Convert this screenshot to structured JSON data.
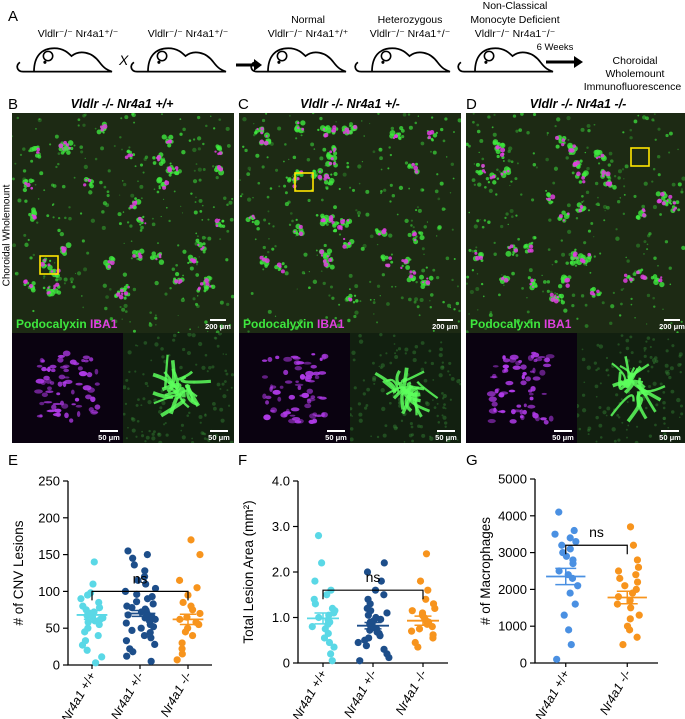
{
  "panel_letters": [
    "A",
    "B",
    "C",
    "D",
    "E",
    "F",
    "G"
  ],
  "schematic": {
    "mouse1": "Vldlr⁻/⁻ Nr4a1⁺/⁻",
    "cross": "X",
    "mouse2": "Vldlr⁻/⁻ Nr4a1⁺/⁻",
    "group1_title": "Normal",
    "group1_geno": "Vldlr⁻/⁻ Nr4a1⁺/⁺",
    "group2_title": "Heterozygous",
    "group2_geno": "Vldlr⁻/⁻ Nr4a1⁺/⁻",
    "group3_title_1": "Non-Classical",
    "group3_title_2": "Monocyte Deficient",
    "group3_geno": "Vldlr⁻/⁻ Nr4a1⁻/⁻",
    "timepoint": "6 Weeks",
    "endpoint_1": "Choroidal",
    "endpoint_2": "Wholemount",
    "endpoint_3": "Immunofluorescence"
  },
  "images": {
    "side_label": "Choroidal Wholemount",
    "titles": [
      "Vldlr -/- Nr4a1 +/+",
      "Vldlr -/- Nr4a1 +/-",
      "Vldlr -/- Nr4a1 -/-"
    ],
    "stain_green": "Podocalyxin",
    "stain_magenta": "IBA1",
    "scale_large": "200 μm",
    "scale_small": "50 μm",
    "colors": {
      "green": "#3ee83e",
      "magenta": "#e040e0"
    }
  },
  "chart_data": [
    {
      "type": "scatter",
      "panel": "E",
      "ylabel": "# of CNV Lesions",
      "ylim": [
        0,
        250
      ],
      "yticks": [
        0,
        50,
        100,
        150,
        200,
        250
      ],
      "categories": [
        "Nr4a1 +/+",
        "Nr4a1 +/-",
        "Nr4a1 -/-"
      ],
      "series": [
        {
          "color": "#5ad8e6",
          "mean": 68,
          "sem": 6,
          "values": [
            3,
            11,
            20,
            27,
            33,
            40,
            45,
            50,
            55,
            58,
            60,
            62,
            64,
            65,
            67,
            68,
            70,
            72,
            75,
            78,
            80,
            85,
            90,
            95,
            98,
            110,
            140
          ]
        },
        {
          "color": "#1d4e8a",
          "mean": 70,
          "sem": 4,
          "values": [
            5,
            12,
            18,
            22,
            28,
            33,
            37,
            40,
            44,
            47,
            50,
            52,
            55,
            57,
            60,
            62,
            64,
            66,
            68,
            70,
            72,
            74,
            76,
            78,
            80,
            83,
            86,
            90,
            93,
            96,
            100,
            104,
            110,
            115,
            120,
            128,
            136,
            145,
            150,
            155
          ]
        },
        {
          "color": "#f7941d",
          "mean": 62,
          "sem": 7,
          "values": [
            7,
            15,
            22,
            30,
            40,
            45,
            50,
            55,
            58,
            62,
            65,
            70,
            75,
            80,
            85,
            95,
            105,
            115,
            150,
            170
          ]
        }
      ],
      "comparison": {
        "from": 0,
        "to": 2,
        "y": 100,
        "label": "ns"
      }
    },
    {
      "type": "scatter",
      "panel": "F",
      "ylabel": "Total Lesion Area (mm²)",
      "ylim": [
        0,
        4
      ],
      "yticks": [
        "0",
        "1.0",
        "2.0",
        "3.0",
        "4.0"
      ],
      "categories": [
        "Nr4a1 +/+",
        "Nr4a1 +/-",
        "Nr4a1 -/-"
      ],
      "series": [
        {
          "color": "#5ad8e6",
          "mean": 0.98,
          "sem": 0.12,
          "values": [
            0.05,
            0.2,
            0.35,
            0.45,
            0.55,
            0.65,
            0.75,
            0.8,
            0.85,
            0.9,
            0.95,
            1.0,
            1.05,
            1.1,
            1.15,
            1.2,
            1.3,
            1.4,
            1.5,
            1.6,
            1.8,
            2.2,
            2.8
          ]
        },
        {
          "color": "#1d4e8a",
          "mean": 0.82,
          "sem": 0.07,
          "values": [
            0.05,
            0.12,
            0.2,
            0.3,
            0.38,
            0.45,
            0.5,
            0.55,
            0.6,
            0.65,
            0.68,
            0.72,
            0.75,
            0.78,
            0.8,
            0.83,
            0.86,
            0.9,
            0.93,
            0.96,
            1.0,
            1.05,
            1.1,
            1.15,
            1.2,
            1.3,
            1.4,
            1.5,
            1.6,
            1.8,
            2.0,
            2.2
          ]
        },
        {
          "color": "#f7941d",
          "mean": 0.93,
          "sem": 0.1,
          "values": [
            0.35,
            0.45,
            0.55,
            0.62,
            0.7,
            0.75,
            0.8,
            0.85,
            0.9,
            0.95,
            1.0,
            1.05,
            1.1,
            1.15,
            1.2,
            1.3,
            1.4,
            1.6,
            1.8,
            2.4
          ]
        }
      ],
      "comparison": {
        "from": 0,
        "to": 2,
        "y": 1.6,
        "label": "ns"
      }
    },
    {
      "type": "scatter",
      "panel": "G",
      "ylabel": "# of Macrophages",
      "ylim": [
        0,
        5000
      ],
      "yticks": [
        0,
        1000,
        2000,
        3000,
        4000,
        5000
      ],
      "categories": [
        "Nr4a1 +/+",
        "Nr4a1 -/-"
      ],
      "series": [
        {
          "color": "#4a90e2",
          "mean": 2350,
          "sem": 220,
          "values": [
            100,
            500,
            900,
            1300,
            1600,
            1900,
            2100,
            2300,
            2400,
            2500,
            2700,
            2800,
            2900,
            3000,
            3100,
            3200,
            3300,
            3400,
            3500,
            3600,
            4100
          ]
        },
        {
          "color": "#f7941d",
          "mean": 1780,
          "sem": 170,
          "values": [
            500,
            700,
            900,
            1000,
            1200,
            1300,
            1500,
            1600,
            1700,
            1800,
            1900,
            2000,
            2100,
            2200,
            2300,
            2400,
            2500,
            2600,
            2800,
            3200,
            3700
          ]
        }
      ],
      "comparison": {
        "from": 0,
        "to": 1,
        "y": 3200,
        "label": "ns"
      }
    }
  ]
}
